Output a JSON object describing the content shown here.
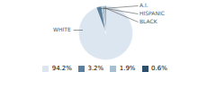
{
  "chart_data": {
    "type": "pie",
    "categories": [
      "WHITE",
      "A.I.",
      "HISPANIC",
      "BLACK"
    ],
    "values": [
      94.2,
      3.2,
      1.9,
      0.6
    ],
    "value_labels": [
      "94.2%",
      "3.2%",
      "1.9%",
      "0.6%"
    ],
    "colors": [
      "#dce6f0",
      "#5b7f9e",
      "#a8bfce",
      "#2e4f6b"
    ],
    "legend": "bottom"
  }
}
